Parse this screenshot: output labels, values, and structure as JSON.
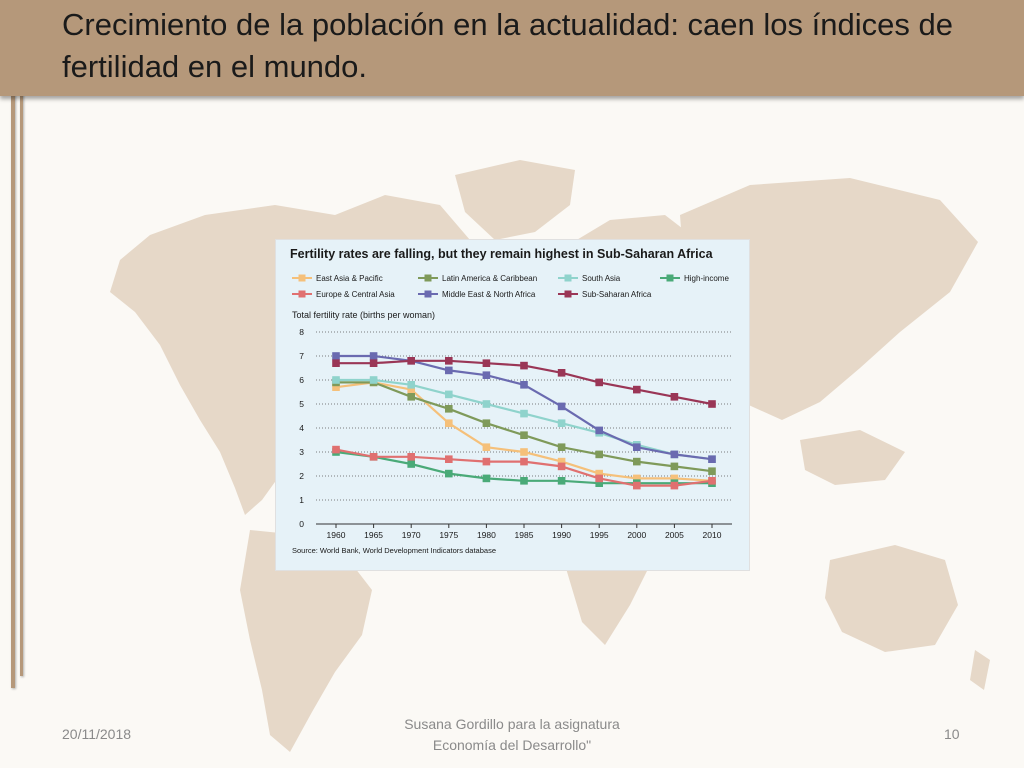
{
  "slide": {
    "title": "Crecimiento de la población en la actualidad: caen los índices de fertilidad en el mundo.",
    "footer_date": "20/11/2018",
    "footer_center": "Susana Gordillo para la asignatura Economía del Desarrollo\"",
    "page_number": "10",
    "colors": {
      "title_bar": "#b5987a",
      "map": "#e6d8c8",
      "chart_background": "#e6f2f8"
    }
  },
  "chart_data": {
    "type": "line",
    "title": "Fertility rates are falling, but they remain highest in Sub-Saharan Africa",
    "ylabel": "Total fertility rate (births per woman)",
    "xlabel": "",
    "source": "Source: World Bank, World Development Indicators database",
    "x": [
      "1960",
      "1965",
      "1970",
      "1975",
      "1980",
      "1985",
      "1990",
      "1995",
      "2000",
      "2005",
      "2010"
    ],
    "ylim": [
      0,
      8
    ],
    "yticks": [
      "0",
      "1",
      "2",
      "3",
      "4",
      "5",
      "6",
      "7",
      "8"
    ],
    "grid": "horizontal dotted",
    "legend_position": "top",
    "series": [
      {
        "name": "East Asia & Pacific",
        "color": "#f5c07a",
        "values": [
          5.7,
          5.9,
          5.6,
          4.2,
          3.2,
          3.0,
          2.6,
          2.1,
          1.9,
          1.9,
          1.8
        ]
      },
      {
        "name": "Latin America & Caribbean",
        "color": "#7f9a5a",
        "values": [
          5.9,
          5.9,
          5.3,
          4.8,
          4.2,
          3.7,
          3.2,
          2.9,
          2.6,
          2.4,
          2.2
        ]
      },
      {
        "name": "South Asia",
        "color": "#8fd3cc",
        "values": [
          6.0,
          6.0,
          5.8,
          5.4,
          5.0,
          4.6,
          4.2,
          3.8,
          3.3,
          2.9,
          2.7
        ]
      },
      {
        "name": "High-income",
        "color": "#4aaa78",
        "values": [
          3.0,
          2.8,
          2.5,
          2.1,
          1.9,
          1.8,
          1.8,
          1.7,
          1.7,
          1.7,
          1.7
        ]
      },
      {
        "name": "Europe & Central Asia",
        "color": "#e07070",
        "values": [
          3.1,
          2.8,
          2.8,
          2.7,
          2.6,
          2.6,
          2.4,
          1.9,
          1.6,
          1.6,
          1.8
        ]
      },
      {
        "name": "Middle East & North Africa",
        "color": "#6a6ab0",
        "values": [
          7.0,
          7.0,
          6.8,
          6.4,
          6.2,
          5.8,
          4.9,
          3.9,
          3.2,
          2.9,
          2.7
        ]
      },
      {
        "name": "Sub-Saharan Africa",
        "color": "#9a3656",
        "values": [
          6.7,
          6.7,
          6.8,
          6.8,
          6.7,
          6.6,
          6.3,
          5.9,
          5.6,
          5.3,
          5.0
        ]
      }
    ]
  }
}
